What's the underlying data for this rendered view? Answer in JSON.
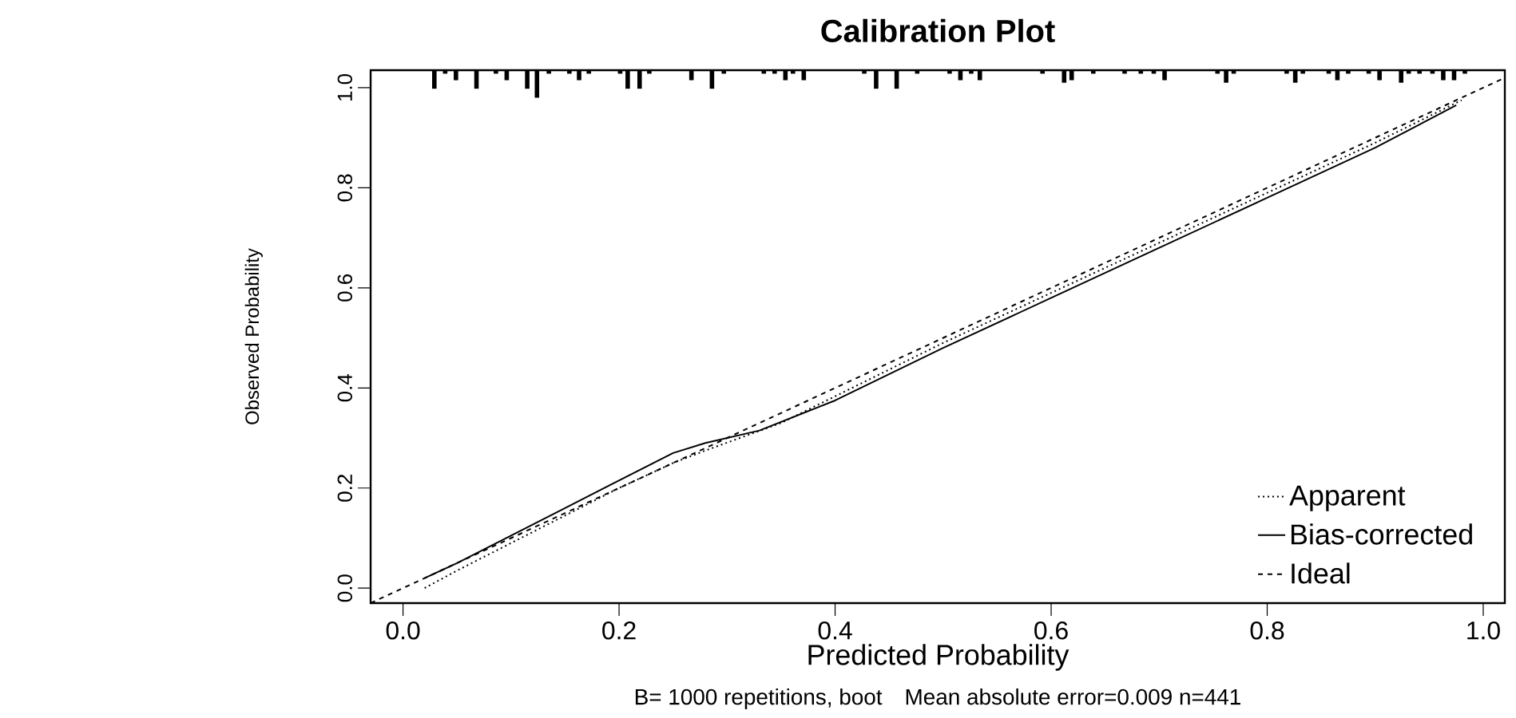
{
  "chart_data": {
    "type": "line",
    "title": "Calibration Plot",
    "xlabel": "Predicted Probability",
    "ylabel": "Observed Probability",
    "annotations": [
      "B= 1000 repetitions, boot",
      "Mean absolute error=0.009 n=441"
    ],
    "xlim": [
      -0.03,
      1.02
    ],
    "ylim": [
      -0.03,
      1.035
    ],
    "xticks": [
      {
        "value": 0,
        "label": "0.0"
      },
      {
        "value": 0.2,
        "label": "0.2"
      },
      {
        "value": 0.4,
        "label": "0.4"
      },
      {
        "value": 0.6,
        "label": "0.6"
      },
      {
        "value": 0.8,
        "label": "0.8"
      },
      {
        "value": 1,
        "label": "1.0"
      }
    ],
    "yticks": [
      {
        "value": 0,
        "label": "0.0"
      },
      {
        "value": 0.2,
        "label": "0.2"
      },
      {
        "value": 0.4,
        "label": "0.4"
      },
      {
        "value": 0.6,
        "label": "0.6"
      },
      {
        "value": 0.8,
        "label": "0.8"
      },
      {
        "value": 1,
        "label": "1.0"
      }
    ],
    "legend": "bottom right",
    "series": [
      {
        "name": "Apparent",
        "color": "#000000",
        "line_style": "dotted",
        "x": [
          0.02,
          0.05,
          0.1,
          0.15,
          0.2,
          0.25,
          0.28,
          0.35,
          0.5,
          0.7,
          0.9,
          0.98
        ],
        "values": [
          0.0,
          0.035,
          0.09,
          0.145,
          0.2,
          0.25,
          0.275,
          0.33,
          0.49,
          0.69,
          0.89,
          0.975
        ]
      },
      {
        "name": "Bias-corrected",
        "color": "#000000",
        "line_style": "solid",
        "x": [
          0.02,
          0.05,
          0.1,
          0.15,
          0.2,
          0.25,
          0.28,
          0.33,
          0.4,
          0.5,
          0.6,
          0.7,
          0.8,
          0.9,
          0.975
        ],
        "values": [
          0.02,
          0.05,
          0.105,
          0.16,
          0.215,
          0.27,
          0.29,
          0.315,
          0.375,
          0.48,
          0.58,
          0.68,
          0.78,
          0.88,
          0.965
        ]
      },
      {
        "name": "Ideal",
        "color": "#000000",
        "line_style": "dashed",
        "x": [
          -0.03,
          1.02
        ],
        "values": [
          -0.03,
          1.02
        ]
      },
      {
        "type": "bar",
        "color": "#000000",
        "x": [
          0.029,
          0.039,
          0.049,
          0.068,
          0.086,
          0.096,
          0.115,
          0.124,
          0.135,
          0.154,
          0.163,
          0.172,
          0.201,
          0.208,
          0.219,
          0.228,
          0.267,
          0.286,
          0.297,
          0.334,
          0.344,
          0.354,
          0.361,
          0.371,
          0.427,
          0.438,
          0.457,
          0.476,
          0.506,
          0.516,
          0.526,
          0.534,
          0.592,
          0.612,
          0.619,
          0.639,
          0.668,
          0.683,
          0.695,
          0.705,
          0.754,
          0.762,
          0.769,
          0.818,
          0.826,
          0.833,
          0.857,
          0.865,
          0.875,
          0.894,
          0.904,
          0.924,
          0.931,
          0.941,
          0.953,
          0.963,
          0.973,
          0.983
        ],
        "base": [
          1.035,
          1.035,
          1.035,
          1.035,
          1.035,
          1.035,
          1.035,
          1.035,
          1.035,
          1.035,
          1.035,
          1.035,
          1.035,
          1.035,
          1.035,
          1.035,
          1.035,
          1.035,
          1.035,
          1.035,
          1.035,
          1.035,
          1.035,
          1.035,
          1.035,
          1.035,
          1.035,
          1.035,
          1.035,
          1.035,
          1.035,
          1.035,
          1.035,
          1.035,
          1.035,
          1.035,
          1.035,
          1.035,
          1.035,
          1.035,
          1.035,
          1.035,
          1.035,
          1.035,
          1.035,
          1.035,
          1.035,
          1.035,
          1.035,
          1.035,
          1.035,
          1.035,
          1.035,
          1.035,
          1.035,
          1.035,
          1.035,
          1.035
        ],
        "values": [
          -0.037,
          -0.007,
          -0.02,
          -0.037,
          -0.007,
          -0.02,
          -0.037,
          -0.055,
          -0.007,
          -0.007,
          -0.02,
          -0.007,
          -0.007,
          -0.037,
          -0.037,
          -0.007,
          -0.02,
          -0.037,
          -0.007,
          -0.007,
          -0.007,
          -0.02,
          -0.007,
          -0.02,
          -0.007,
          -0.037,
          -0.037,
          -0.007,
          -0.007,
          -0.02,
          -0.007,
          -0.02,
          -0.007,
          -0.025,
          -0.02,
          -0.007,
          -0.007,
          -0.007,
          -0.007,
          -0.02,
          -0.007,
          -0.025,
          -0.007,
          -0.007,
          -0.025,
          -0.007,
          -0.007,
          -0.02,
          -0.007,
          -0.007,
          -0.02,
          -0.025,
          -0.007,
          -0.007,
          -0.007,
          -0.02,
          -0.02,
          -0.007
        ]
      }
    ]
  }
}
